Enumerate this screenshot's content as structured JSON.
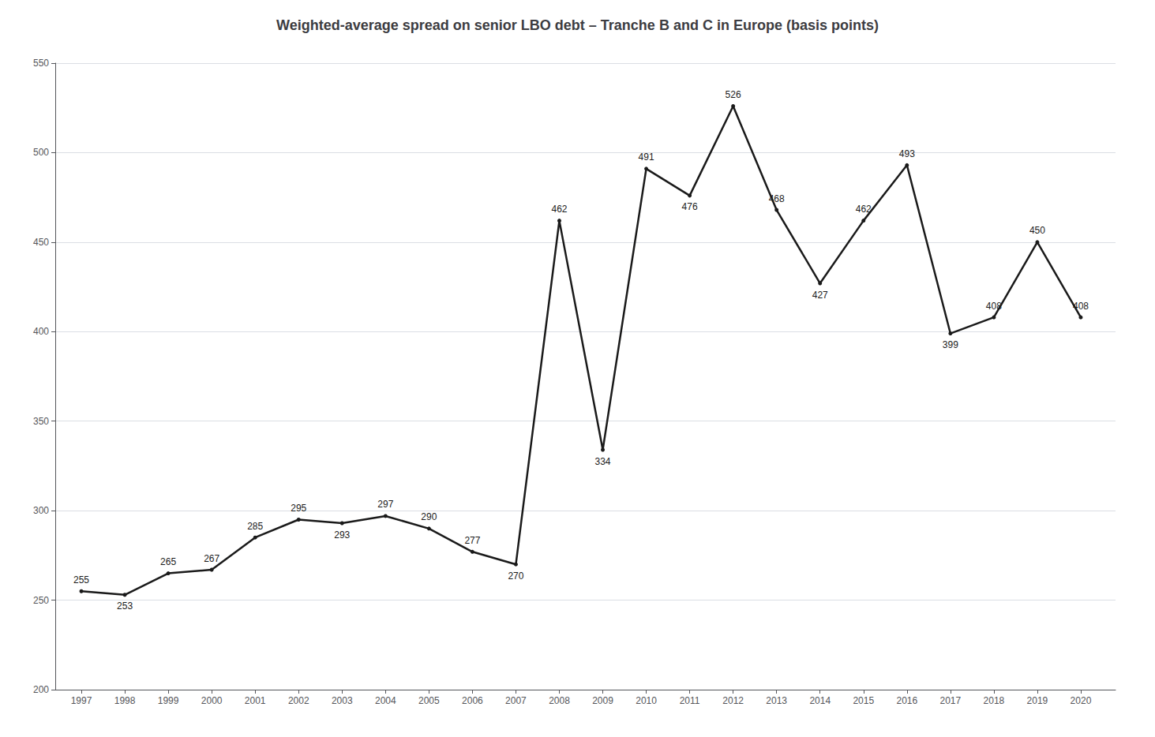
{
  "chart_data": {
    "type": "line",
    "title": "Weighted-average spread on senior LBO debt – Tranche B and C in Europe (basis points)",
    "x": [
      1997,
      1998,
      1999,
      2000,
      2001,
      2002,
      2003,
      2004,
      2005,
      2006,
      2007,
      2008,
      2009,
      2010,
      2011,
      2012,
      2013,
      2014,
      2015,
      2016,
      2017,
      2018,
      2019,
      2020
    ],
    "values": [
      255,
      253,
      265,
      267,
      285,
      295,
      293,
      297,
      290,
      277,
      270,
      462,
      334,
      491,
      476,
      526,
      468,
      427,
      462,
      493,
      399,
      408,
      450,
      408
    ],
    "color": "#1a1a1a",
    "xlim": [
      1996.4,
      2020.8
    ],
    "xticks": [
      1997,
      1998,
      1999,
      2000,
      2001,
      2002,
      2003,
      2004,
      2005,
      2006,
      2007,
      2008,
      2009,
      2010,
      2011,
      2012,
      2013,
      2014,
      2015,
      2016,
      2017,
      2018,
      2019,
      2020
    ],
    "ylim": [
      200,
      550
    ],
    "yticks": [
      200,
      250,
      300,
      350,
      400,
      450,
      500,
      550
    ],
    "grid": true,
    "data_labels": true
  }
}
